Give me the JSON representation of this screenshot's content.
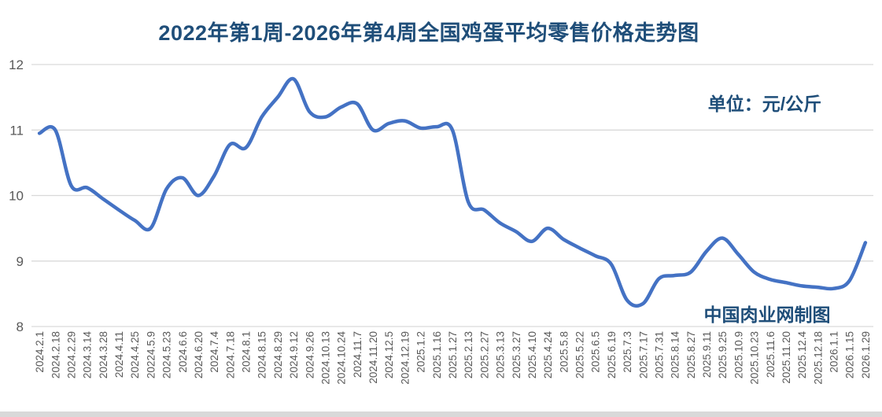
{
  "title": "2022年第1周-2026年第4周全国鸡蛋平均零售价格走势图",
  "unit_label": "单位：元/公斤",
  "watermark": "中国肉业网制图",
  "colors": {
    "title_text": "#1F4E79",
    "line": "#4472C4",
    "grid": "#D9D9D9",
    "axis_text": "#595959"
  },
  "chart_data": {
    "type": "line",
    "title": "2022年第1周-2026年第4周全国鸡蛋平均零售价格走势图",
    "ylabel": "元/公斤",
    "xlabel": "",
    "ylim": [
      8,
      12
    ],
    "yticks": [
      8,
      9,
      10,
      11,
      12
    ],
    "grid": "horizontal",
    "legend_position": "none",
    "smooth": true,
    "categories": [
      "2024.2.1",
      "2024.2.18",
      "2024.2.29",
      "2024.3.14",
      "2024.3.28",
      "2024.4.11",
      "2024.4.25",
      "20224.5.9",
      "2024.5.23",
      "2024.6.6",
      "2024.6.20",
      "2024.7.4",
      "2024.7.18",
      "2024.8.1",
      "2024.8.15",
      "2024.8.29",
      "2024.9.12",
      "2024.9.26",
      "2024.10.13",
      "2024.10.24",
      "2024.11.7",
      "2024.11.20",
      "2024.12.5",
      "2024.12.19",
      "2025.1.2",
      "2025.1.16",
      "2025.1.27",
      "2025.2.13",
      "2025.2.27",
      "2025.3.13",
      "2025.3.27",
      "2025.4.10",
      "2025.4.24",
      "2025.5.8",
      "2025.5.22",
      "2025.6.5",
      "2025.6.19",
      "2025.7.3",
      "2025.7.17",
      "2025.7.31",
      "2025.8.14",
      "2025.8.27",
      "2025.9.11",
      "2025.9.25",
      "2025.10.9",
      "2025.10.23",
      "2025.11.6",
      "2025.11.20",
      "2025.12.4",
      "2025.12.18",
      "2026.1.1",
      "2026.1.15",
      "2026.1.29"
    ],
    "series": [
      {
        "name": "全国鸡蛋平均零售价格",
        "values": [
          10.95,
          11.0,
          10.15,
          10.12,
          9.95,
          9.78,
          9.62,
          9.5,
          10.1,
          10.27,
          10.0,
          10.3,
          10.78,
          10.73,
          11.2,
          11.5,
          11.78,
          11.28,
          11.2,
          11.35,
          11.4,
          11.0,
          11.1,
          11.14,
          11.03,
          11.05,
          11.0,
          9.9,
          9.78,
          9.58,
          9.45,
          9.3,
          9.5,
          9.33,
          9.2,
          9.08,
          8.95,
          8.4,
          8.35,
          8.73,
          8.78,
          8.83,
          9.15,
          9.35,
          9.1,
          8.83,
          8.72,
          8.67,
          8.62,
          8.6,
          8.58,
          8.7,
          9.28
        ]
      }
    ]
  }
}
